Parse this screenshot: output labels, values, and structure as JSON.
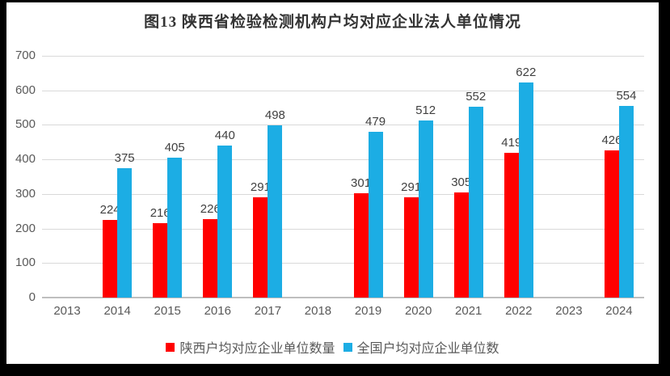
{
  "frame": {
    "border_color": "#000000",
    "background_color": "#ffffff"
  },
  "chart_data": {
    "type": "bar",
    "title": "图13  陕西省检验检测机构户均对应企业法人单位情况",
    "categories": [
      "2013",
      "2014",
      "2015",
      "2016",
      "2017",
      "2018",
      "2019",
      "2020",
      "2021",
      "2022",
      "2023",
      "2024"
    ],
    "series": [
      {
        "name": "陕西户均对应企业单位数量",
        "color": "#ff0000",
        "values": [
          null,
          224,
          216,
          226,
          291,
          null,
          301,
          291,
          305,
          419,
          null,
          426
        ]
      },
      {
        "name": "全国户均对应企业单位数",
        "color": "#1cade4",
        "values": [
          null,
          375,
          405,
          440,
          498,
          null,
          479,
          512,
          552,
          622,
          null,
          554
        ]
      }
    ],
    "xlabel": "",
    "ylabel": "",
    "ylim": [
      0,
      700
    ],
    "yticks": [
      0,
      100,
      200,
      300,
      400,
      500,
      600,
      700
    ],
    "grid": true,
    "data_labels": true,
    "legend_position": "bottom",
    "gridline_color": "#d9d9d9",
    "axis_line_color": "#bfbfbf",
    "tick_label_color": "#595959",
    "data_label_color": "#404040"
  }
}
